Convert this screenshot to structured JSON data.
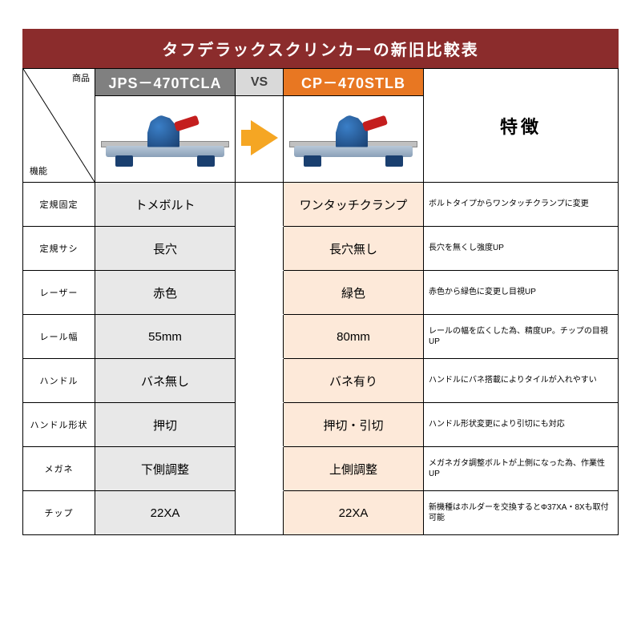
{
  "title": "タフデラックスクリンカーの新旧比較表",
  "header": {
    "corner_top": "商品",
    "corner_bottom": "機能",
    "old_product": "JPS－470TCLA",
    "vs": "VS",
    "new_product": "CP－470STLB",
    "feature_label": "特徴"
  },
  "colors": {
    "title_bg": "#8b2c2c",
    "old_header_bg": "#808080",
    "vs_header_bg": "#d9d9d9",
    "new_header_bg": "#e87722",
    "old_cell_bg": "#e8e8e8",
    "new_cell_bg": "#fde9d9",
    "arrow": "#f5a623"
  },
  "rows": [
    {
      "label": "定規固定",
      "old": "トメボルト",
      "new": "ワンタッチクランプ",
      "feature": "ボルトタイプからワンタッチクランプに変更"
    },
    {
      "label": "定規サシ",
      "old": "長穴",
      "new": "長穴無し",
      "feature": "長穴を無くし強度UP"
    },
    {
      "label": "レーザー",
      "old": "赤色",
      "new": "緑色",
      "feature": "赤色から緑色に変更し目視UP"
    },
    {
      "label": "レール幅",
      "old": "55mm",
      "new": "80mm",
      "feature": "レールの幅を広くした為、精度UP。チップの目視UP"
    },
    {
      "label": "ハンドル",
      "old": "バネ無し",
      "new": "バネ有り",
      "feature": "ハンドルにバネ搭載によりタイルが入れやすい"
    },
    {
      "label": "ハンドル形状",
      "old": "押切",
      "new": "押切・引切",
      "feature": "ハンドル形状変更により引切にも対応"
    },
    {
      "label": "メガネ",
      "old": "下側調整",
      "new": "上側調整",
      "feature": "メガネガタ調整ボルトが上側になった為、作業性UP"
    },
    {
      "label": "チップ",
      "old": "22XA",
      "new": "22XA",
      "feature": "新機種はホルダーを交換するとΦ37XA・8Xも取付可能"
    }
  ]
}
